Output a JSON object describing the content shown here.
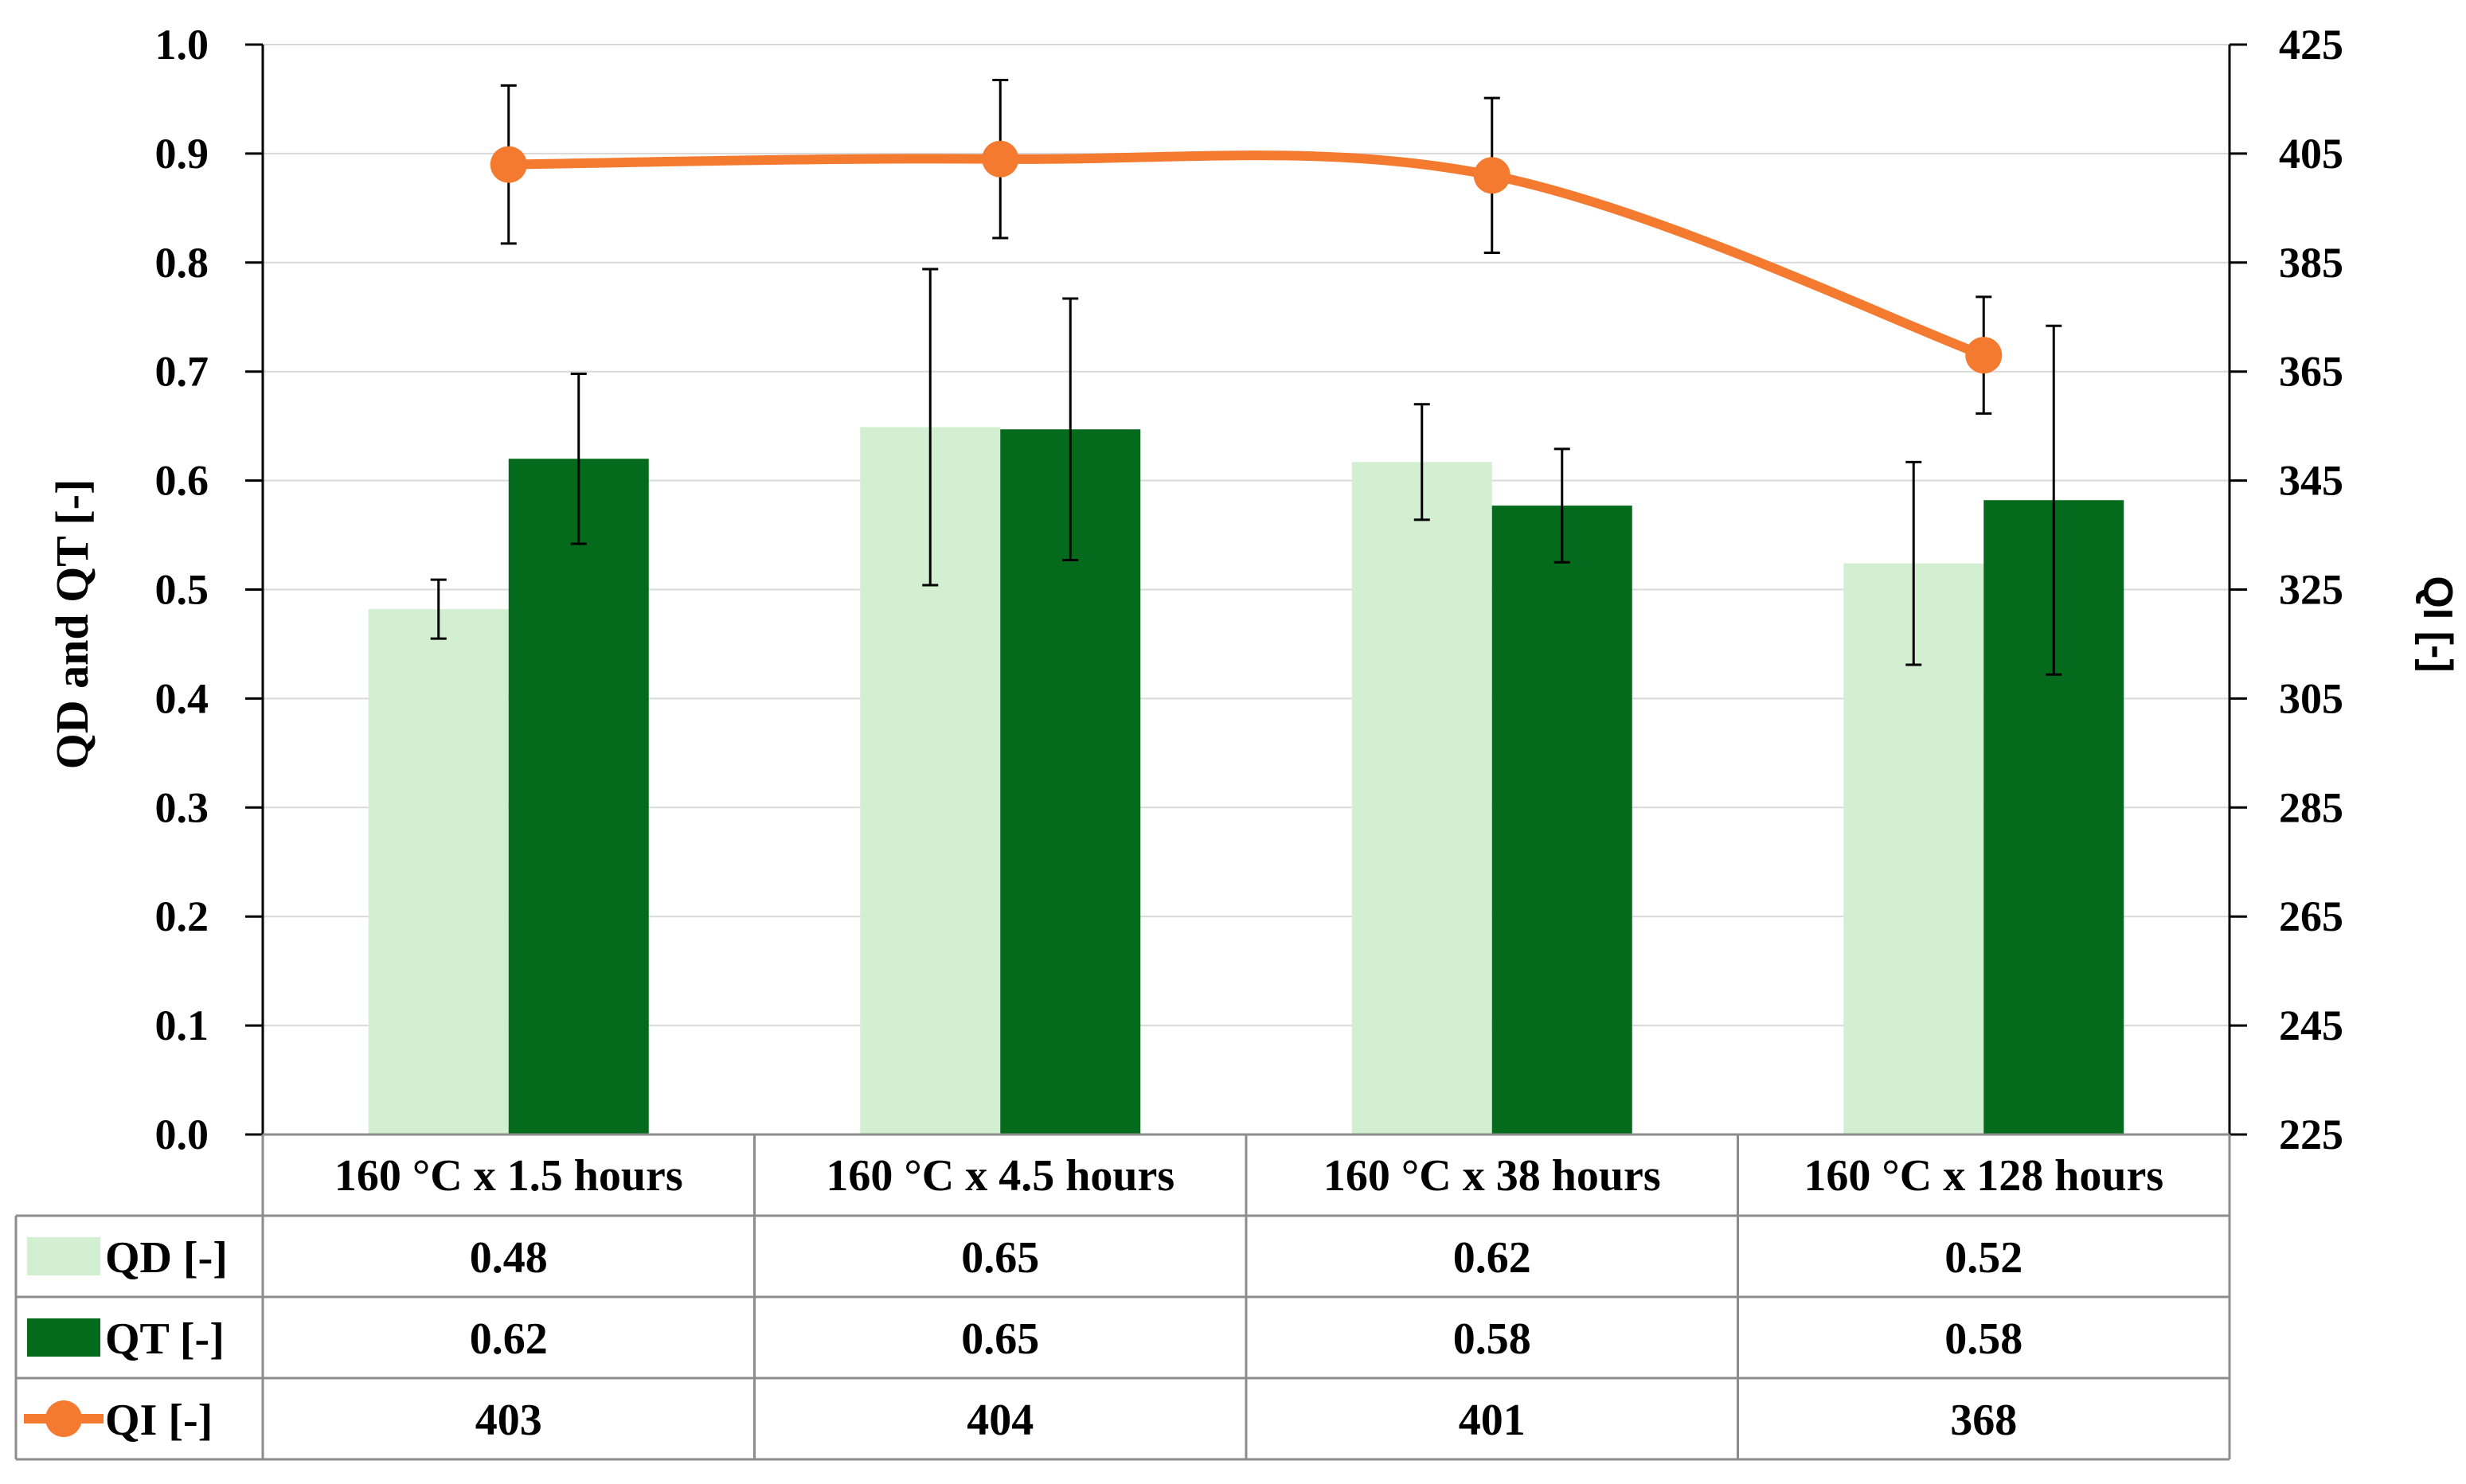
{
  "chart_data": {
    "type": "bar",
    "title": "",
    "categories": [
      "160 °C x 1.5 hours",
      "160 °C x 4.5 hours",
      "160 °C x 38 hours",
      "160 °C x 128 hours"
    ],
    "ylabel": "QD and QT [-]",
    "y2label": "QI [-]",
    "ylim": [
      0.0,
      1.0
    ],
    "y_ticks": [
      "0.0",
      "0.1",
      "0.2",
      "0.3",
      "0.4",
      "0.5",
      "0.6",
      "0.7",
      "0.8",
      "0.9",
      "1.0"
    ],
    "y2lim": [
      225,
      425
    ],
    "y2_ticks": [
      "225",
      "245",
      "265",
      "285",
      "305",
      "325",
      "345",
      "365",
      "385",
      "405",
      "425"
    ],
    "grid": true,
    "series": [
      {
        "name": "QD [-]",
        "kind": "bar",
        "axis": "left",
        "color": "#d2efd2",
        "values": [
          0.482,
          0.649,
          0.617,
          0.524
        ],
        "labels": [
          "0.48",
          "0.65",
          "0.62",
          "0.52"
        ],
        "error": [
          0.027,
          0.145,
          0.053,
          0.093
        ]
      },
      {
        "name": "QT [-]",
        "kind": "bar",
        "axis": "left",
        "color": "#036b1b",
        "values": [
          0.62,
          0.647,
          0.577,
          0.582
        ],
        "labels": [
          "0.62",
          "0.65",
          "0.58",
          "0.58"
        ],
        "error": [
          0.078,
          0.12,
          0.052,
          0.16
        ]
      },
      {
        "name": "QI [-]",
        "kind": "line",
        "axis": "right",
        "color": "#f47a30",
        "values": [
          403,
          404,
          401,
          368
        ],
        "labels": [
          "403",
          "404",
          "401",
          "368"
        ],
        "error": [
          14.5,
          14.5,
          14.2,
          10.7
        ]
      }
    ]
  }
}
